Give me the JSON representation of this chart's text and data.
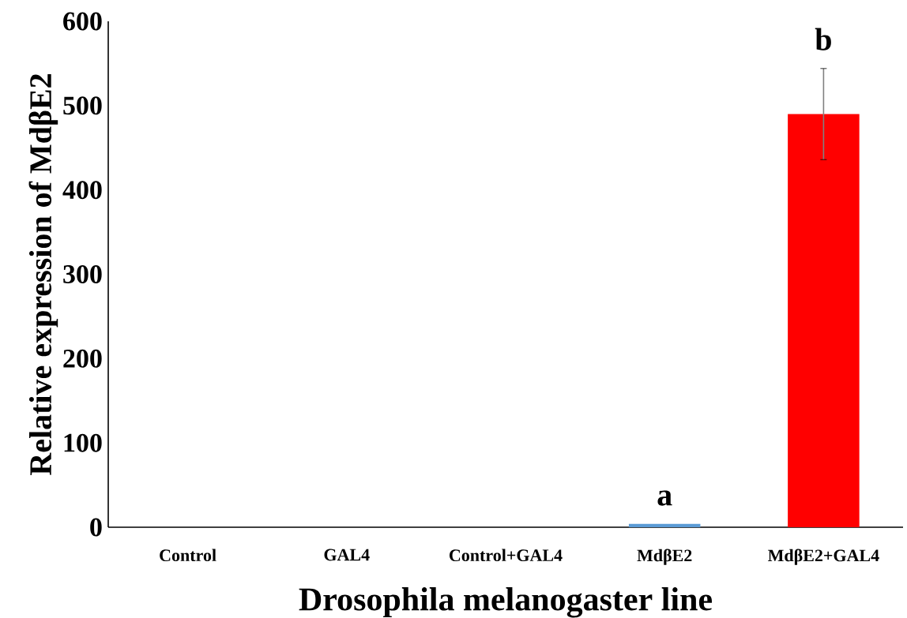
{
  "chart_data": {
    "type": "bar",
    "xlabel": "Drosophila melanogaster line",
    "ylabel": "Relative expression of MdβE2",
    "categories": [
      "Control",
      "GAL4",
      "Control+GAL4",
      "MdβE2",
      "MdβE2+GAL4"
    ],
    "values": [
      0,
      0,
      0,
      4,
      490
    ],
    "errors": [
      null,
      null,
      null,
      null,
      54
    ],
    "colors": [
      "#5b9bd5",
      "#5b9bd5",
      "#5b9bd5",
      "#5b9bd5",
      "#ff0000"
    ],
    "ylim": [
      0,
      600
    ],
    "yticks": [
      0,
      100,
      200,
      300,
      400,
      500,
      600
    ],
    "annotations": [
      "a",
      "b"
    ],
    "grid": false
  }
}
